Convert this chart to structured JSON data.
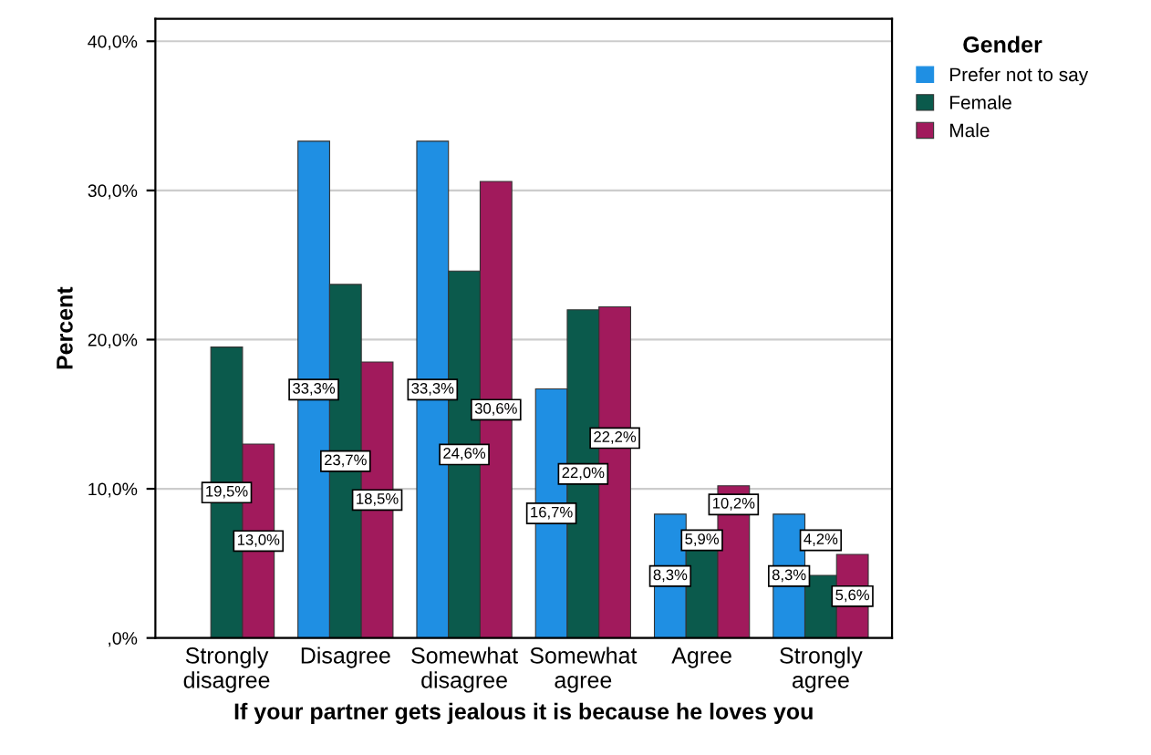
{
  "chart_data": {
    "type": "bar",
    "xlabel": "If your partner gets jealous it is because he loves you",
    "ylabel": "Percent",
    "legend_title": "Gender",
    "categories": [
      "Strongly\ndisagree",
      "Disagree",
      "Somewhat\ndisagree",
      "Somewhat\nagree",
      "Agree",
      "Strongly\nagree"
    ],
    "series": [
      {
        "name": "Prefer not to say",
        "color": "#1f8fe3",
        "values": [
          0,
          33.3,
          33.3,
          16.7,
          8.3,
          8.3
        ],
        "value_labels": [
          null,
          "33,3%",
          "33,3%",
          "16,7%",
          "8,3%",
          "8,3%"
        ]
      },
      {
        "name": "Female",
        "color": "#0b5a4c",
        "values": [
          19.5,
          23.7,
          24.6,
          22.0,
          5.9,
          4.2
        ],
        "value_labels": [
          "19,5%",
          "23,7%",
          "24,6%",
          "22,0%",
          "5,9%",
          "4,2%"
        ]
      },
      {
        "name": "Male",
        "color": "#a11a5c",
        "values": [
          13.0,
          18.5,
          30.6,
          22.2,
          10.2,
          5.6
        ],
        "value_labels": [
          "13,0%",
          "18,5%",
          "30,6%",
          "22,2%",
          "10,2%",
          "5,6%"
        ]
      }
    ],
    "ylim": [
      0,
      41.5
    ],
    "yticks": [
      {
        "value": 0,
        "label": ",0%"
      },
      {
        "value": 10,
        "label": "10,0%"
      },
      {
        "value": 20,
        "label": "20,0%"
      },
      {
        "value": 30,
        "label": "30,0%"
      },
      {
        "value": 40,
        "label": "40,0%"
      }
    ],
    "grid": "y",
    "legend": "top right"
  }
}
